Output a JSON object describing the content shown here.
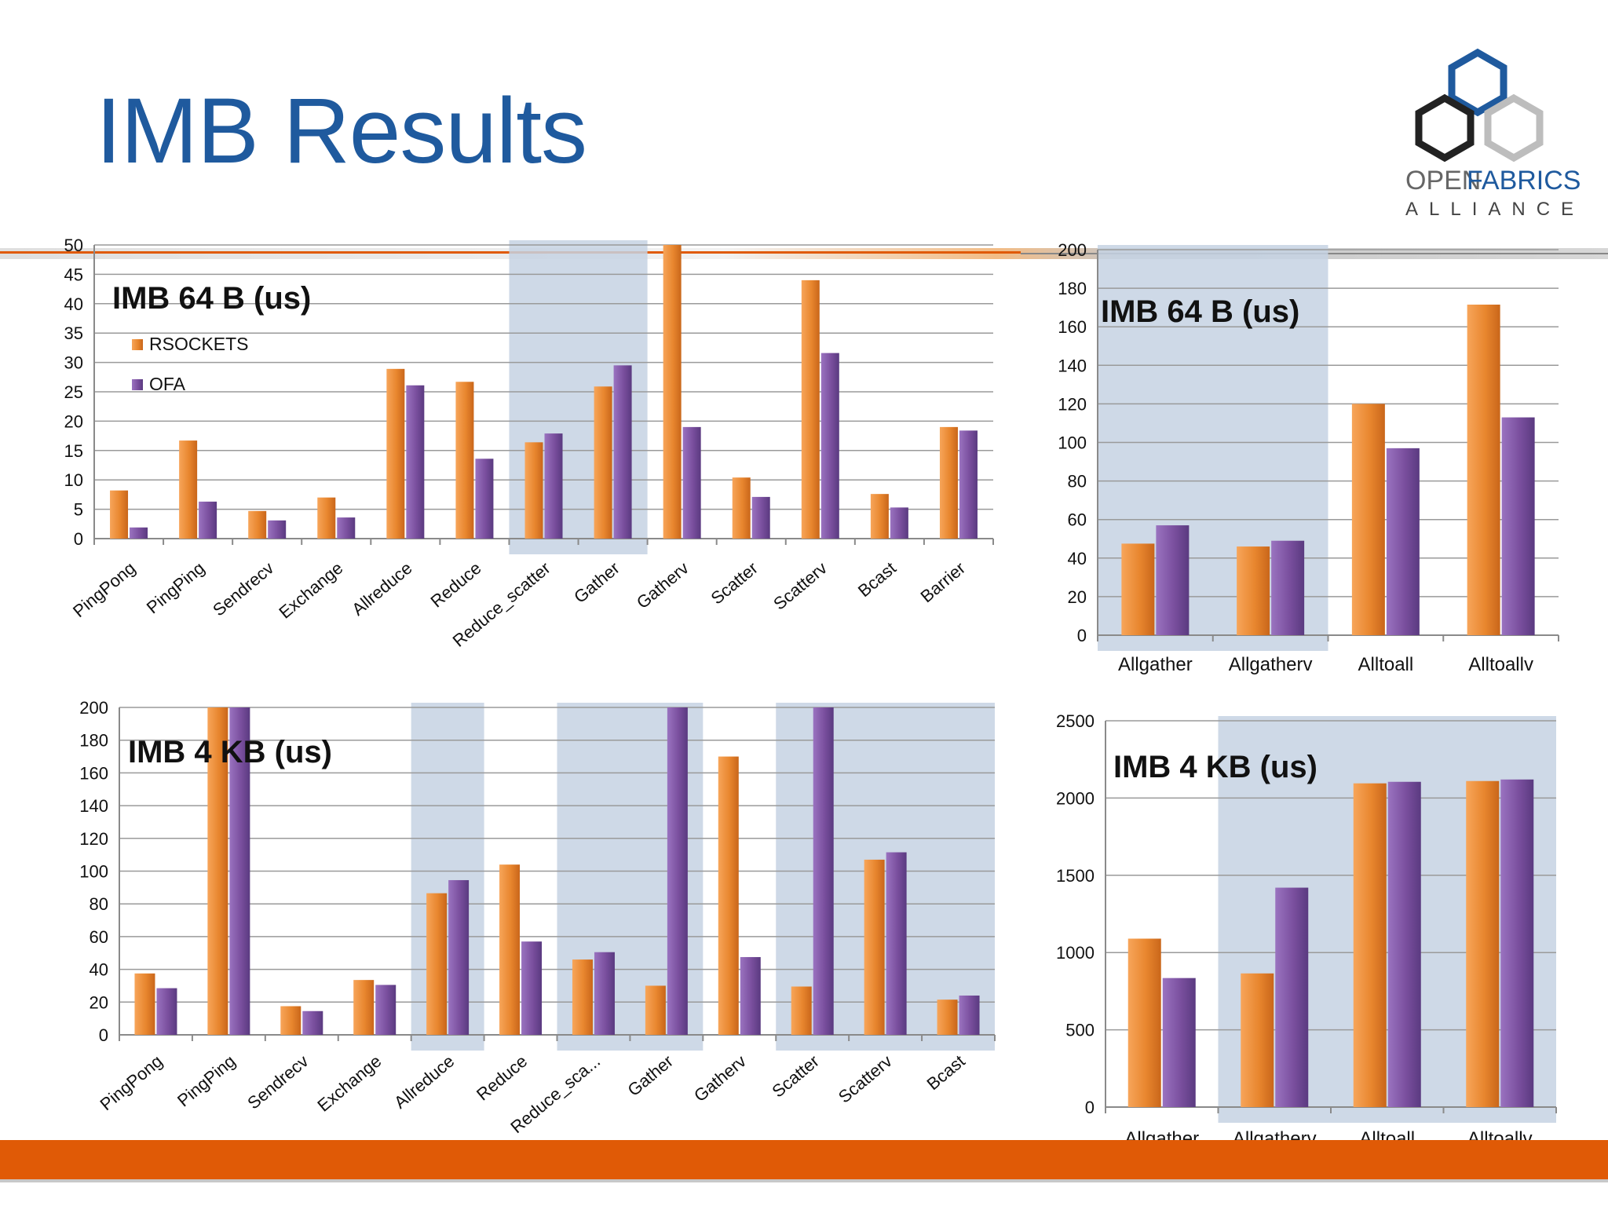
{
  "slide": {
    "title": "IMB Results",
    "logo": {
      "icon": "openfabrics-hexagon-logo",
      "word1": "OPEN",
      "word2": "FABRICS",
      "word3": "ALLIANCE"
    }
  },
  "colors": {
    "rsockets": "#e8862e",
    "ofa": "#7a4f9e",
    "title": "#1f5a9e",
    "highlight": "#c6d2e3",
    "footer": "#e05a06",
    "grid": "#9a9a9a"
  },
  "chart_data": [
    {
      "id": "c1",
      "type": "bar",
      "title": "IMB 64 B (us)",
      "categories": [
        "PingPong",
        "PingPing",
        "Sendrecv",
        "Exchange",
        "Allreduce",
        "Reduce",
        "Reduce_scatter",
        "Gather",
        "Gatherv",
        "Scatter",
        "Scatterv",
        "Bcast",
        "Barrier"
      ],
      "series": [
        {
          "name": "RSOCKETS",
          "values": [
            8.2,
            16.7,
            4.7,
            7.0,
            28.9,
            26.7,
            16.4,
            25.9,
            50,
            10.4,
            44.0,
            7.6,
            19.0
          ]
        },
        {
          "name": "OFA",
          "values": [
            1.9,
            6.3,
            3.1,
            3.6,
            26.1,
            13.6,
            17.9,
            29.5,
            19.0,
            7.1,
            31.6,
            5.3,
            18.4
          ]
        }
      ],
      "ylim": [
        0,
        50
      ],
      "yticks": [
        0,
        5,
        10,
        15,
        20,
        25,
        30,
        35,
        40,
        45,
        50
      ],
      "legend": "top-left",
      "highlight": [
        [
          6,
          7
        ]
      ],
      "rotate_labels": true
    },
    {
      "id": "c2",
      "type": "bar",
      "title": "IMB 64 B (us)",
      "categories": [
        "Allgather",
        "Allgatherv",
        "Alltoall",
        "Alltoallv"
      ],
      "series": [
        {
          "name": "RSOCKETS",
          "values": [
            47.5,
            46.0,
            120.0,
            171.5
          ]
        },
        {
          "name": "OFA",
          "values": [
            57.0,
            49.0,
            97.0,
            113.0
          ]
        }
      ],
      "ylim": [
        0,
        200
      ],
      "yticks": [
        0,
        20,
        40,
        60,
        80,
        100,
        120,
        140,
        160,
        180,
        200
      ],
      "highlight": [
        [
          0,
          1
        ]
      ],
      "rotate_labels": false
    },
    {
      "id": "c3",
      "type": "bar",
      "title": "IMB 4 KB (us)",
      "categories": [
        "PingPong",
        "PingPing",
        "Sendrecv",
        "Exchange",
        "Allreduce",
        "Reduce",
        "Reduce_sca...",
        "Gather",
        "Gatherv",
        "Scatter",
        "Scatterv",
        "Bcast"
      ],
      "series": [
        {
          "name": "RSOCKETS",
          "values": [
            37.5,
            200,
            17.5,
            33.5,
            86.5,
            104.0,
            46.0,
            30.0,
            170.0,
            29.5,
            107.0,
            21.5
          ]
        },
        {
          "name": "OFA",
          "values": [
            28.5,
            200,
            14.5,
            30.5,
            94.5,
            57.0,
            50.5,
            200,
            47.5,
            200,
            111.5,
            24.0
          ]
        }
      ],
      "ylim": [
        0,
        200
      ],
      "yticks": [
        0,
        20,
        40,
        60,
        80,
        100,
        120,
        140,
        160,
        180,
        200
      ],
      "highlight": [
        [
          4,
          4
        ],
        [
          6,
          7
        ],
        [
          9,
          11
        ]
      ],
      "rotate_labels": true
    },
    {
      "id": "c4",
      "type": "bar",
      "title": "IMB 4 KB (us)",
      "categories": [
        "Allgather",
        "Allgatherv",
        "Alltoall",
        "Alltoallv"
      ],
      "series": [
        {
          "name": "RSOCKETS",
          "values": [
            1090,
            865,
            2095,
            2110
          ]
        },
        {
          "name": "OFA",
          "values": [
            835,
            1420,
            2105,
            2120
          ]
        }
      ],
      "ylim": [
        0,
        2500
      ],
      "yticks": [
        0,
        500,
        1000,
        1500,
        2000,
        2500
      ],
      "highlight": [
        [
          1,
          3
        ]
      ],
      "rotate_labels": false
    }
  ]
}
